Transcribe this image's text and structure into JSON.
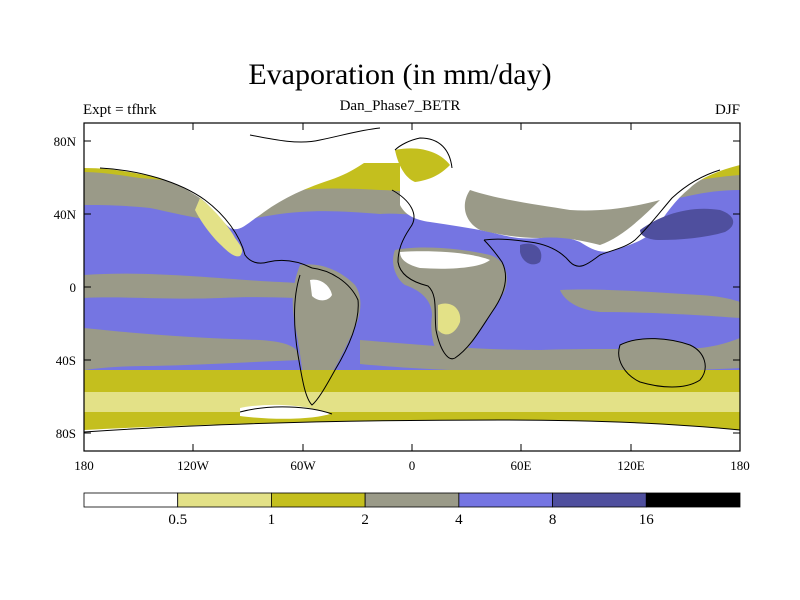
{
  "title": "Evaporation (in mm/day)",
  "subtitle": "Dan_Phase7_BETR",
  "left_label": "Expt = tfhrk",
  "right_label": "DJF",
  "x_ticks": [
    "180",
    "120W",
    "60W",
    "0",
    "60E",
    "120E",
    "180"
  ],
  "y_ticks": [
    "80N",
    "40N",
    "0",
    "40S",
    "80S"
  ],
  "colorbar": {
    "levels": [
      "0.5",
      "1",
      "2",
      "4",
      "8",
      "16"
    ],
    "colors": [
      "#ffffff",
      "#e3e187",
      "#c4bf1e",
      "#9a9a88",
      "#7575e2",
      "#4f4f9e",
      "#000000"
    ]
  },
  "chart_data": {
    "type": "heatmap",
    "title": "Evaporation (in mm/day)",
    "subtitle": "Dan_Phase7_BETR",
    "left_annotation": "Expt = tfhrk",
    "right_annotation": "DJF",
    "x_range": [
      -180,
      180
    ],
    "y_range": [
      -90,
      90
    ],
    "contour_levels": [
      0.5,
      1,
      2,
      4,
      8,
      16
    ]
  }
}
